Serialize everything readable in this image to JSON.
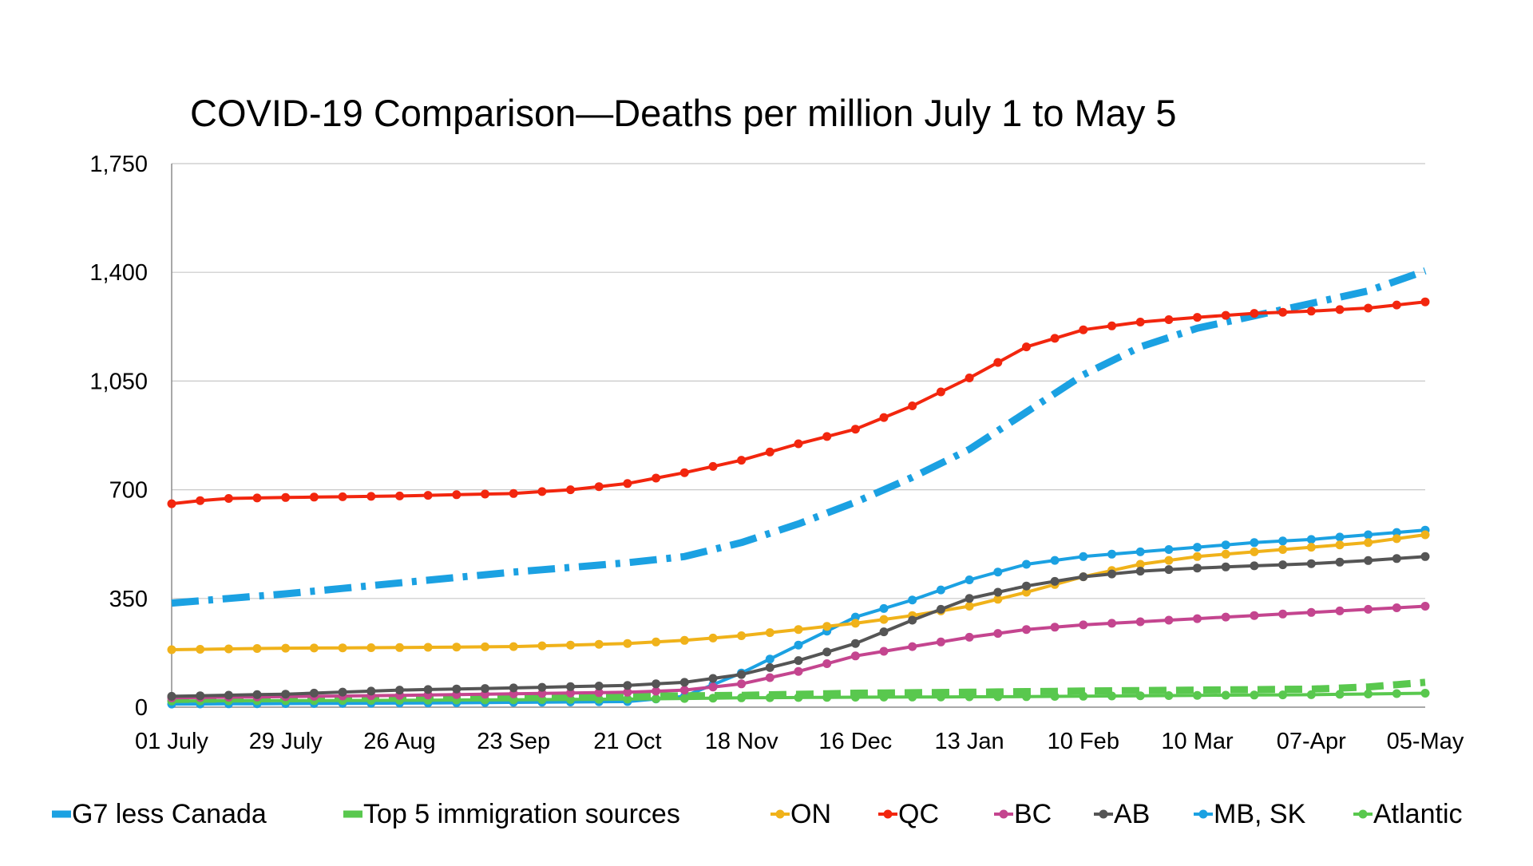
{
  "chart_data": {
    "type": "line",
    "title": "COVID-19 Comparison—Deaths per million July 1 to May 5",
    "xlabel": "",
    "ylabel": "",
    "ylim": [
      0,
      1750
    ],
    "yticks": [
      0,
      350,
      700,
      1050,
      1400,
      1750
    ],
    "ytick_labels": [
      "0",
      "350",
      "700",
      "1,050",
      "1,400",
      "1,750"
    ],
    "xticks": [
      "01 July",
      "29 July",
      "26 Aug",
      "23 Sep",
      "21 Oct",
      "18 Nov",
      "16 Dec",
      "13 Jan",
      "10 Feb",
      "10 Mar",
      "07-Apr",
      "05-May"
    ],
    "x_week_start": 0,
    "x_week_end": 44,
    "grid": "horizontal",
    "legend_position": "bottom",
    "series": [
      {
        "name": "G7 less Canada",
        "color": "#1ba1e2",
        "style": "dashdot",
        "points": [
          [
            0,
            335
          ],
          [
            4,
            365
          ],
          [
            8,
            400
          ],
          [
            12,
            435
          ],
          [
            16,
            465
          ],
          [
            18,
            485
          ],
          [
            20,
            530
          ],
          [
            22,
            590
          ],
          [
            24,
            660
          ],
          [
            26,
            740
          ],
          [
            28,
            830
          ],
          [
            30,
            950
          ],
          [
            32,
            1070
          ],
          [
            34,
            1160
          ],
          [
            36,
            1220
          ],
          [
            38,
            1260
          ],
          [
            40,
            1300
          ],
          [
            42,
            1340
          ],
          [
            44,
            1405
          ]
        ]
      },
      {
        "name": "Top 5 immigration sources",
        "color": "#59c84e",
        "style": "dash",
        "points": [
          [
            0,
            25
          ],
          [
            8,
            30
          ],
          [
            16,
            35
          ],
          [
            20,
            38
          ],
          [
            24,
            45
          ],
          [
            28,
            48
          ],
          [
            32,
            52
          ],
          [
            36,
            55
          ],
          [
            40,
            58
          ],
          [
            42,
            65
          ],
          [
            44,
            80
          ]
        ]
      },
      {
        "name": "ON",
        "color": "#f0b21a",
        "style": "solid",
        "points": [
          [
            0,
            185
          ],
          [
            4,
            190
          ],
          [
            8,
            192
          ],
          [
            12,
            195
          ],
          [
            16,
            205
          ],
          [
            18,
            215
          ],
          [
            20,
            230
          ],
          [
            22,
            250
          ],
          [
            24,
            270
          ],
          [
            26,
            295
          ],
          [
            28,
            325
          ],
          [
            30,
            370
          ],
          [
            32,
            420
          ],
          [
            34,
            460
          ],
          [
            36,
            485
          ],
          [
            38,
            500
          ],
          [
            40,
            515
          ],
          [
            42,
            530
          ],
          [
            44,
            555
          ]
        ]
      },
      {
        "name": "QC",
        "color": "#f2260e",
        "style": "solid",
        "points": [
          [
            0,
            655
          ],
          [
            1,
            665
          ],
          [
            2,
            672
          ],
          [
            4,
            675
          ],
          [
            8,
            680
          ],
          [
            12,
            688
          ],
          [
            14,
            700
          ],
          [
            16,
            720
          ],
          [
            18,
            755
          ],
          [
            20,
            795
          ],
          [
            22,
            848
          ],
          [
            24,
            895
          ],
          [
            26,
            970
          ],
          [
            28,
            1060
          ],
          [
            30,
            1160
          ],
          [
            32,
            1215
          ],
          [
            34,
            1240
          ],
          [
            36,
            1255
          ],
          [
            38,
            1268
          ],
          [
            40,
            1275
          ],
          [
            42,
            1285
          ],
          [
            44,
            1305
          ]
        ]
      },
      {
        "name": "BC",
        "color": "#c4458f",
        "style": "solid",
        "points": [
          [
            0,
            30
          ],
          [
            8,
            38
          ],
          [
            16,
            48
          ],
          [
            18,
            55
          ],
          [
            20,
            75
          ],
          [
            22,
            115
          ],
          [
            24,
            165
          ],
          [
            26,
            195
          ],
          [
            28,
            225
          ],
          [
            30,
            250
          ],
          [
            32,
            265
          ],
          [
            34,
            275
          ],
          [
            36,
            285
          ],
          [
            38,
            295
          ],
          [
            40,
            305
          ],
          [
            42,
            315
          ],
          [
            44,
            325
          ]
        ]
      },
      {
        "name": "AB",
        "color": "#555555",
        "style": "solid",
        "points": [
          [
            0,
            35
          ],
          [
            4,
            42
          ],
          [
            8,
            55
          ],
          [
            12,
            62
          ],
          [
            16,
            70
          ],
          [
            18,
            80
          ],
          [
            20,
            105
          ],
          [
            22,
            150
          ],
          [
            24,
            205
          ],
          [
            26,
            280
          ],
          [
            28,
            350
          ],
          [
            30,
            390
          ],
          [
            32,
            420
          ],
          [
            34,
            438
          ],
          [
            36,
            448
          ],
          [
            38,
            455
          ],
          [
            40,
            462
          ],
          [
            42,
            472
          ],
          [
            44,
            485
          ]
        ]
      },
      {
        "name": "MB, SK",
        "color": "#1ba1e2",
        "style": "solid",
        "points": [
          [
            0,
            10
          ],
          [
            8,
            13
          ],
          [
            16,
            18
          ],
          [
            18,
            35
          ],
          [
            20,
            110
          ],
          [
            22,
            200
          ],
          [
            24,
            290
          ],
          [
            26,
            345
          ],
          [
            28,
            410
          ],
          [
            30,
            460
          ],
          [
            32,
            485
          ],
          [
            34,
            500
          ],
          [
            36,
            515
          ],
          [
            38,
            530
          ],
          [
            40,
            540
          ],
          [
            42,
            555
          ],
          [
            44,
            570
          ]
        ]
      },
      {
        "name": "Atlantic",
        "color": "#59c84e",
        "style": "solid",
        "points": [
          [
            0,
            20
          ],
          [
            8,
            22
          ],
          [
            16,
            26
          ],
          [
            20,
            30
          ],
          [
            24,
            32
          ],
          [
            30,
            34
          ],
          [
            36,
            38
          ],
          [
            40,
            40
          ],
          [
            44,
            45
          ]
        ]
      }
    ]
  }
}
